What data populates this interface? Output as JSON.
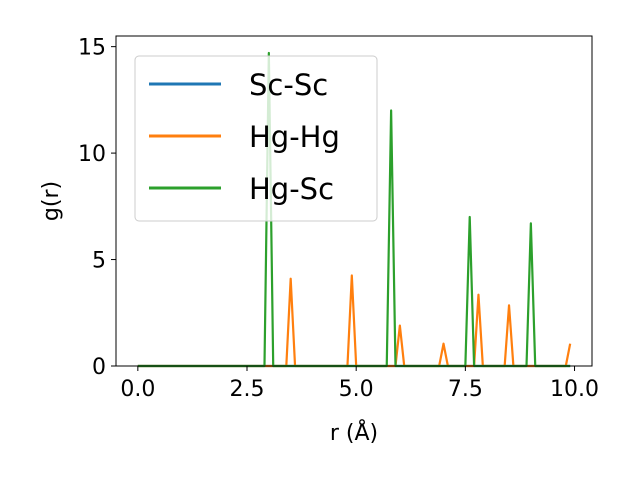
{
  "chart_data": {
    "type": "line",
    "title": "",
    "xlabel": "r (Å)",
    "ylabel": "g(r)",
    "xlim": [
      -0.5,
      10.4
    ],
    "ylim": [
      0,
      15.5
    ],
    "xticks": [
      0.0,
      2.5,
      5.0,
      7.5,
      10.0
    ],
    "xtick_labels": [
      "0.0",
      "2.5",
      "5.0",
      "7.5",
      "10.0"
    ],
    "yticks": [
      0,
      5,
      10,
      15
    ],
    "ytick_labels": [
      "0",
      "5",
      "10",
      "15"
    ],
    "grid": false,
    "legend_position": "top-left",
    "series": [
      {
        "name": "Sc-Sc",
        "color": "#1f77b4",
        "x": [
          0.0,
          9.9
        ],
        "y": [
          0,
          0
        ]
      },
      {
        "name": "Hg-Hg",
        "color": "#ff7f0e",
        "x": [
          0.0,
          3.4,
          3.5,
          3.6,
          4.8,
          4.9,
          5.0,
          5.9,
          6.0,
          6.1,
          6.9,
          7.0,
          7.1,
          7.7,
          7.8,
          7.9,
          8.4,
          8.5,
          8.6,
          9.8,
          9.9
        ],
        "y": [
          0,
          0,
          4.1,
          0,
          0,
          4.25,
          0,
          0,
          1.9,
          0,
          0,
          1.05,
          0,
          0,
          3.35,
          0,
          0,
          2.85,
          0,
          0,
          1.05
        ]
      },
      {
        "name": "Hg-Sc",
        "color": "#2ca02c",
        "x": [
          0.0,
          2.9,
          3.0,
          3.1,
          5.7,
          5.8,
          5.9,
          7.5,
          7.6,
          7.7,
          8.9,
          9.0,
          9.1,
          9.9
        ],
        "y": [
          0,
          0,
          14.7,
          0,
          0,
          12.0,
          0,
          0,
          7.0,
          0,
          0,
          6.7,
          0,
          0
        ]
      }
    ]
  }
}
